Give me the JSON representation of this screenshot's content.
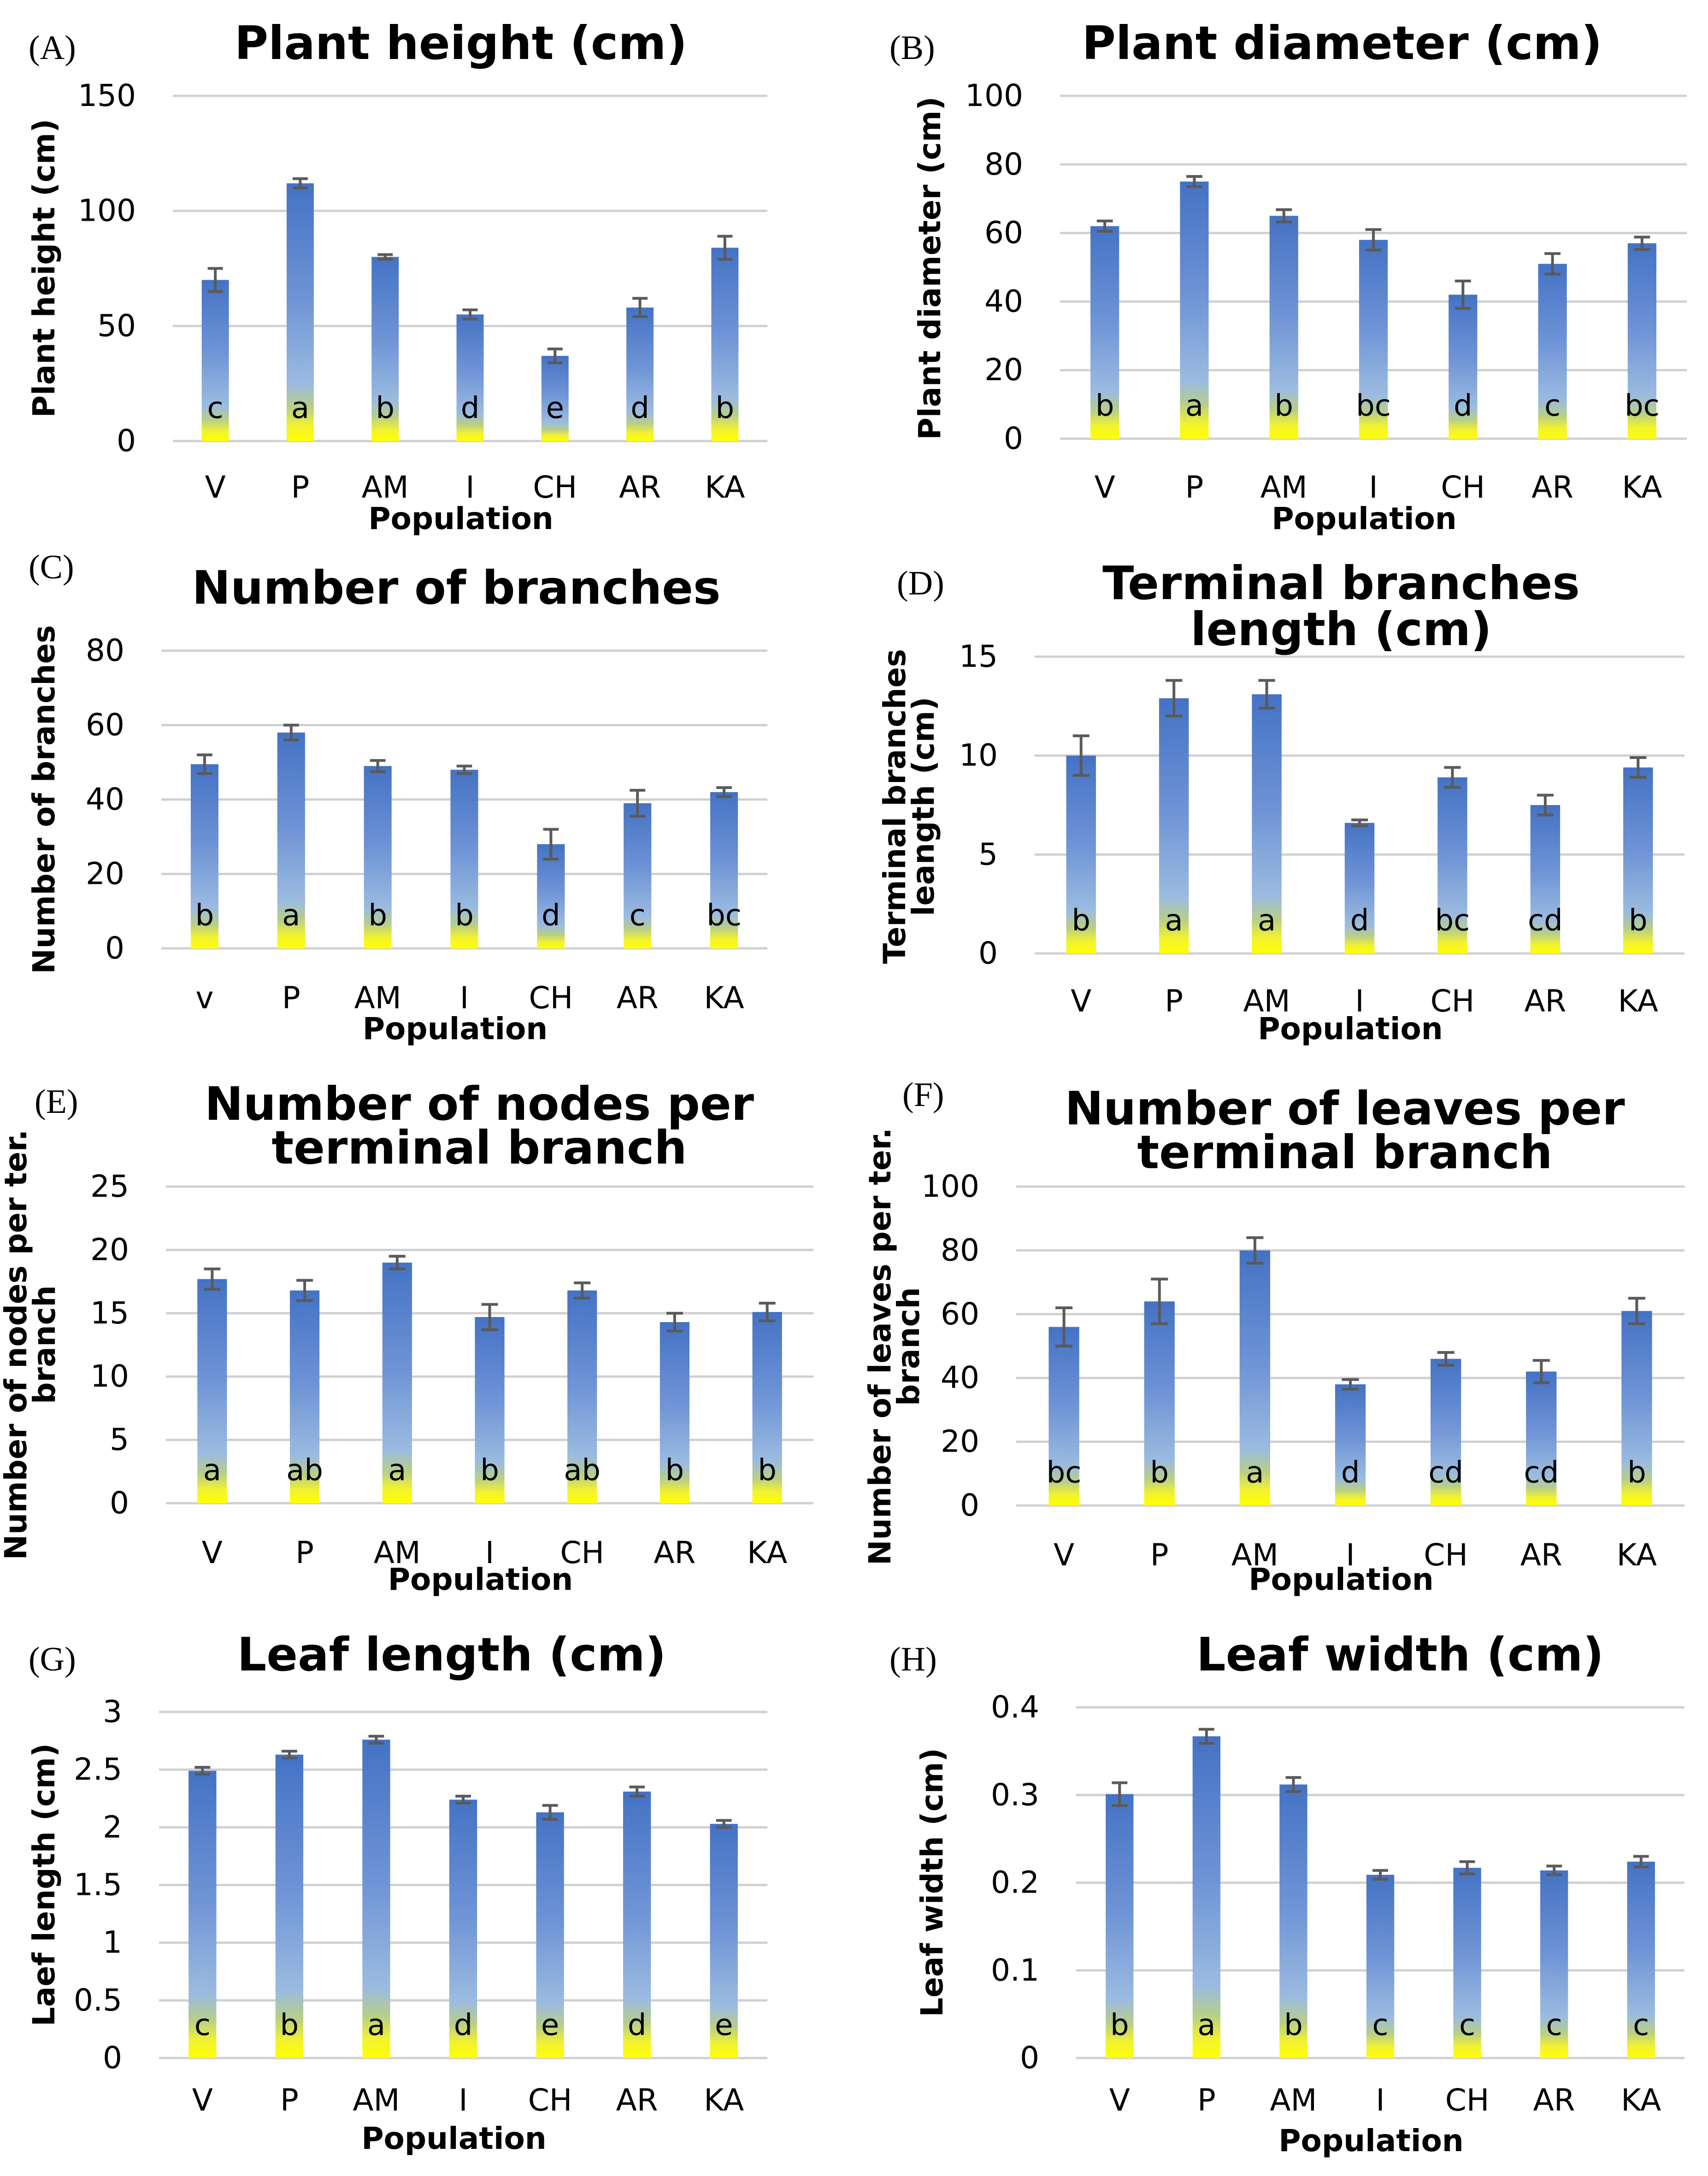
{
  "colors": {
    "bar_top": "#4472c4",
    "bar_mid": "#8fb0e4",
    "bar_bottom": "#ffff00",
    "grid": "#d0d0d0",
    "error": "#5a5a5a"
  },
  "chart_data": [
    {
      "panel": "(A)",
      "type": "bar",
      "title": [
        "Plant height (cm)"
      ],
      "ylabel": [
        "Plant height (cm)"
      ],
      "xlabel": "Population",
      "categories": [
        "V",
        "P",
        "AM",
        "I",
        "CH",
        "AR",
        "KA"
      ],
      "values": [
        70,
        112,
        80,
        55,
        37,
        58,
        84
      ],
      "errors": [
        5,
        2,
        1,
        2,
        3,
        4,
        5
      ],
      "letters": [
        "c",
        "a",
        "b",
        "d",
        "e",
        "d",
        "b"
      ],
      "ylim": [
        0,
        150
      ],
      "yticks": [
        0,
        50,
        100,
        150
      ],
      "ytick_labels": [
        "0",
        "50",
        "100",
        "150"
      ]
    },
    {
      "panel": "(B)",
      "type": "bar",
      "title": [
        "Plant diameter (cm)"
      ],
      "ylabel": [
        "Plant diameter (cm)"
      ],
      "xlabel": "Population",
      "categories": [
        "V",
        "P",
        "AM",
        "I",
        "CH",
        "AR",
        "KA"
      ],
      "values": [
        62,
        75,
        65,
        58,
        42,
        51,
        57
      ],
      "errors": [
        1.5,
        1.5,
        1.8,
        3,
        4,
        3,
        1.8
      ],
      "letters": [
        "b",
        "a",
        "b",
        "bc",
        "d",
        "c",
        "bc"
      ],
      "ylim": [
        0,
        100
      ],
      "yticks": [
        0,
        20,
        40,
        60,
        80,
        100
      ],
      "ytick_labels": [
        "0",
        "20",
        "40",
        "60",
        "80",
        "100"
      ]
    },
    {
      "panel": "(C)",
      "type": "bar",
      "title": [
        "Number of branches"
      ],
      "ylabel": [
        "Number of branches"
      ],
      "xlabel": "Population",
      "categories": [
        "v",
        "P",
        "AM",
        "I",
        "CH",
        "AR",
        "KA"
      ],
      "values": [
        49.5,
        58,
        49,
        48,
        28,
        39,
        42
      ],
      "errors": [
        2.5,
        2,
        1.5,
        1,
        4,
        3.5,
        1.2
      ],
      "letters": [
        "b",
        "a",
        "b",
        "b",
        "d",
        "c",
        "bc"
      ],
      "ylim": [
        0,
        80
      ],
      "yticks": [
        0,
        20,
        40,
        60,
        80
      ],
      "ytick_labels": [
        "0",
        "20",
        "40",
        "60",
        "80"
      ]
    },
    {
      "panel": "(D)",
      "type": "bar",
      "title": [
        "Terminal branches",
        "length (cm)"
      ],
      "ylabel": [
        "Terminal branches",
        "leangth (cm)"
      ],
      "xlabel": "Population",
      "categories": [
        "V",
        "P",
        "AM",
        "I",
        "CH",
        "AR",
        "KA"
      ],
      "values": [
        10,
        12.9,
        13.1,
        6.6,
        8.9,
        7.5,
        9.4
      ],
      "errors": [
        1,
        0.9,
        0.7,
        0.15,
        0.5,
        0.5,
        0.5
      ],
      "letters": [
        "b",
        "a",
        "a",
        "d",
        "bc",
        "cd",
        "b"
      ],
      "ylim": [
        0,
        15
      ],
      "yticks": [
        0,
        5,
        10,
        15
      ],
      "ytick_labels": [
        "0",
        "5",
        "10",
        "15"
      ]
    },
    {
      "panel": "(E)",
      "type": "bar",
      "title": [
        "Number of nodes per",
        "terminal branch"
      ],
      "ylabel": [
        "Number of nodes per ter.",
        "branch"
      ],
      "xlabel": "Population",
      "categories": [
        "V",
        "P",
        "AM",
        "I",
        "CH",
        "AR",
        "KA"
      ],
      "values": [
        17.7,
        16.8,
        19,
        14.7,
        16.8,
        14.3,
        15.1
      ],
      "errors": [
        0.8,
        0.8,
        0.5,
        1,
        0.6,
        0.7,
        0.7
      ],
      "letters": [
        "a",
        "ab",
        "a",
        "b",
        "ab",
        "b",
        "b"
      ],
      "ylim": [
        0,
        25
      ],
      "yticks": [
        0,
        5,
        10,
        15,
        20,
        25
      ],
      "ytick_labels": [
        "0",
        "5",
        "10",
        "15",
        "20",
        "25"
      ]
    },
    {
      "panel": "(F)",
      "type": "bar",
      "title": [
        "Number of leaves per",
        "terminal branch"
      ],
      "ylabel": [
        "Number of leaves per ter.",
        "branch"
      ],
      "xlabel": "Population",
      "categories": [
        "V",
        "P",
        "AM",
        "I",
        "CH",
        "AR",
        "KA"
      ],
      "values": [
        56,
        64,
        80,
        38,
        46,
        42,
        61
      ],
      "errors": [
        6,
        7,
        4,
        1.5,
        2,
        3.5,
        4
      ],
      "letters": [
        "bc",
        "b",
        "a",
        "d",
        "cd",
        "cd",
        "b"
      ],
      "ylim": [
        0,
        100
      ],
      "yticks": [
        0,
        20,
        40,
        60,
        80,
        100
      ],
      "ytick_labels": [
        "0",
        "20",
        "40",
        "60",
        "80",
        "100"
      ]
    },
    {
      "panel": "(G)",
      "type": "bar",
      "title": [
        "Leaf length (cm)"
      ],
      "ylabel": [
        "Laef length (cm)"
      ],
      "xlabel": "Population",
      "categories": [
        "V",
        "P",
        "AM",
        "I",
        "CH",
        "AR",
        "KA"
      ],
      "values": [
        2.49,
        2.63,
        2.76,
        2.24,
        2.13,
        2.31,
        2.03
      ],
      "errors": [
        0.03,
        0.03,
        0.03,
        0.03,
        0.06,
        0.04,
        0.03
      ],
      "letters": [
        "c",
        "b",
        "a",
        "d",
        "e",
        "d",
        "e"
      ],
      "ylim": [
        0,
        3
      ],
      "yticks": [
        0,
        0.5,
        1,
        1.5,
        2,
        2.5,
        3
      ],
      "ytick_labels": [
        "0",
        "0.5",
        "1",
        "1.5",
        "2",
        "2.5",
        "3"
      ]
    },
    {
      "panel": "(H)",
      "type": "bar",
      "title": [
        "Leaf width (cm)"
      ],
      "ylabel": [
        "Leaf width (cm)"
      ],
      "xlabel": "Population",
      "categories": [
        "V",
        "P",
        "AM",
        "I",
        "CH",
        "AR",
        "KA"
      ],
      "values": [
        0.301,
        0.367,
        0.312,
        0.209,
        0.217,
        0.214,
        0.224
      ],
      "errors": [
        0.013,
        0.008,
        0.008,
        0.005,
        0.007,
        0.005,
        0.006
      ],
      "letters": [
        "b",
        "a",
        "b",
        "c",
        "c",
        "c",
        "c"
      ],
      "ylim": [
        0,
        0.4
      ],
      "yticks": [
        0,
        0.1,
        0.2,
        0.3,
        0.4
      ],
      "ytick_labels": [
        "0",
        "0.1",
        "0.2",
        "0.3",
        "0.4"
      ]
    }
  ]
}
